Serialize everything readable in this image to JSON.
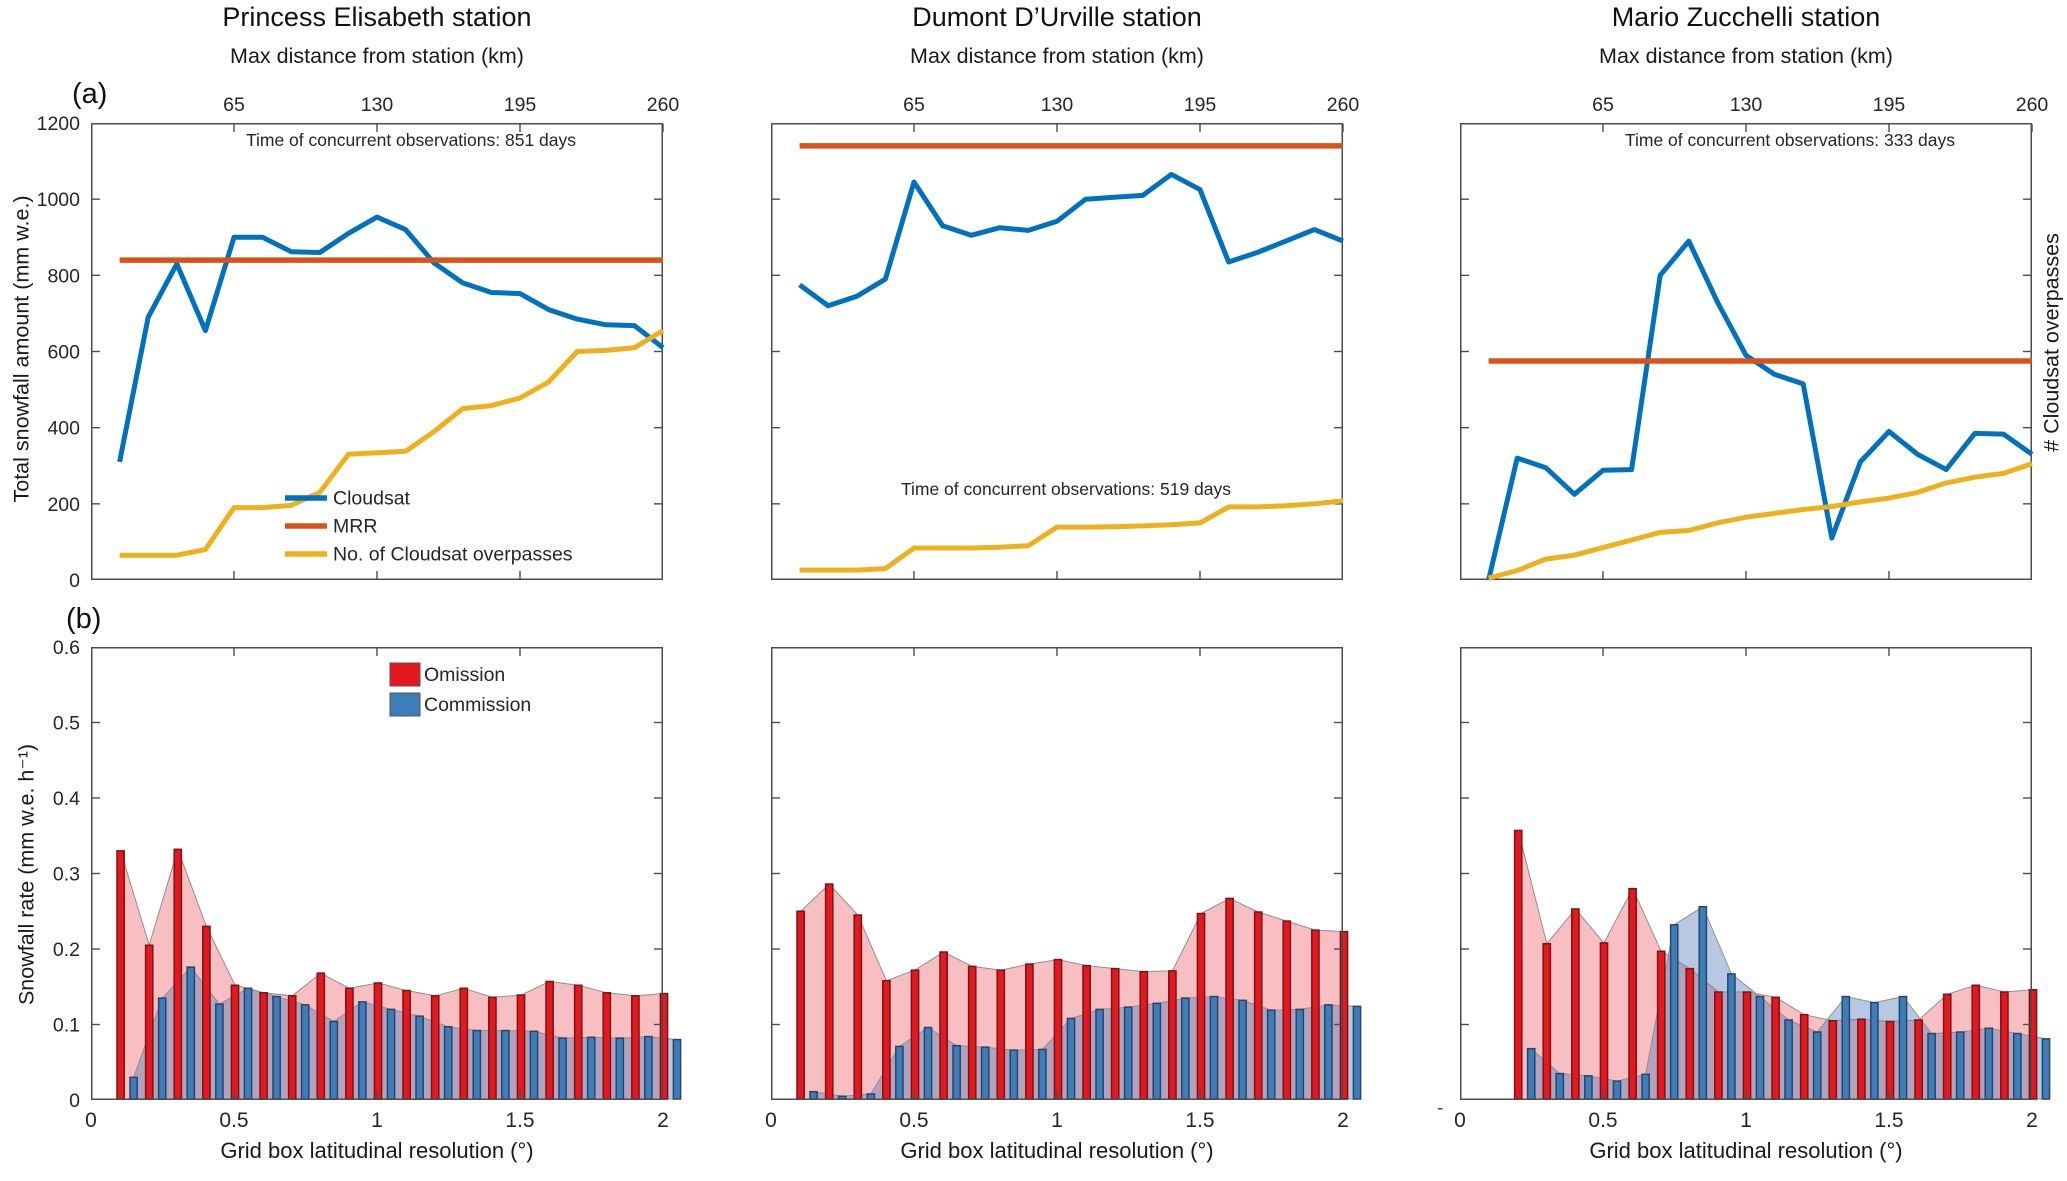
{
  "figure": {
    "panel_label_a": "(a)",
    "panel_label_b": "(b)",
    "top_axis_title": "Max distance from station (km)",
    "bottom_axis_title": "Grid box latitudinal resolution (°)",
    "left_axis_title_top": "Total snowfall amount (mm w.e.)",
    "left_axis_title_bottom": "Snowfall rate (mm w.e. h⁻¹)",
    "right_axis_title": "# Cloudsat overpasses",
    "stray_mark": "-"
  },
  "colors": {
    "axis": "#4d4d4d",
    "text": "#262626",
    "cloudsat": "#0072bd",
    "mrr": "#d95319",
    "overpasses": "#edb120",
    "omission_fill": "#e3191f",
    "omission_edge": "#7c1215",
    "commission_fill": "#3d7eb8",
    "commission_edge": "#27456b",
    "omission_area": "rgba(232,62,68,0.33)",
    "commission_area": "rgba(80,125,185,0.42)",
    "area_edge": "#909090"
  },
  "chart_data": [
    {
      "type": "line",
      "station": "Princess Elisabeth station",
      "annotation": "Time of concurrent observations: 851 days",
      "xlim": [
        0,
        2
      ],
      "ylim": [
        0,
        1200
      ],
      "yticks": [
        0,
        200,
        400,
        600,
        800,
        1000,
        1200
      ],
      "top_axis_ticks_km": [
        65,
        130,
        195,
        260
      ],
      "x": [
        0.1,
        0.2,
        0.3,
        0.4,
        0.5,
        0.6,
        0.7,
        0.8,
        0.9,
        1.0,
        1.1,
        1.2,
        1.3,
        1.4,
        1.5,
        1.6,
        1.7,
        1.8,
        1.9,
        2.0
      ],
      "series": [
        {
          "name": "Cloudsat",
          "values": [
            310,
            690,
            830,
            655,
            900,
            900,
            862,
            860,
            910,
            953,
            920,
            832,
            780,
            755,
            752,
            710,
            685,
            670,
            668,
            610
          ]
        },
        {
          "name": "MRR",
          "value": 840
        },
        {
          "name": "No. of Cloudsat overpasses",
          "values": [
            65,
            65,
            65,
            80,
            190,
            190,
            196,
            230,
            330,
            334,
            338,
            390,
            450,
            458,
            478,
            520,
            600,
            603,
            610,
            655
          ]
        }
      ],
      "legend": [
        "Cloudsat",
        "MRR",
        "No. of Cloudsat overpasses"
      ]
    },
    {
      "type": "line",
      "station": "Dumont D’Urville station",
      "annotation": "Time of concurrent observations: 519 days",
      "xlim": [
        0,
        2
      ],
      "ylim": [
        0,
        1200
      ],
      "yticks": [
        0,
        200,
        400,
        600,
        800,
        1000,
        1200
      ],
      "top_axis_ticks_km": [
        65,
        130,
        195,
        260
      ],
      "x": [
        0.1,
        0.2,
        0.3,
        0.4,
        0.5,
        0.6,
        0.7,
        0.8,
        0.9,
        1.0,
        1.1,
        1.2,
        1.3,
        1.4,
        1.5,
        1.6,
        1.7,
        1.8,
        1.9,
        2.0
      ],
      "series": [
        {
          "name": "Cloudsat",
          "values": [
            775,
            720,
            745,
            790,
            1045,
            930,
            905,
            925,
            918,
            942,
            1000,
            1005,
            1010,
            1065,
            1025,
            835,
            860,
            890,
            920,
            890
          ]
        },
        {
          "name": "MRR",
          "value": 1140
        },
        {
          "name": "No. of Cloudsat overpasses",
          "values": [
            26,
            26,
            26,
            30,
            84,
            84,
            84,
            86,
            90,
            139,
            139,
            140,
            142,
            145,
            150,
            192,
            192,
            195,
            200,
            208
          ]
        }
      ],
      "legend": null
    },
    {
      "type": "line",
      "station": "Mario Zucchelli station",
      "annotation": "Time of concurrent observations: 333 days",
      "xlim": [
        0,
        2
      ],
      "ylim": [
        0,
        1200
      ],
      "yticks": [
        0,
        200,
        400,
        600,
        800,
        1000,
        1200
      ],
      "top_axis_ticks_km": [
        65,
        130,
        195,
        260
      ],
      "x": [
        0.1,
        0.2,
        0.3,
        0.4,
        0.5,
        0.6,
        0.7,
        0.8,
        0.9,
        1.0,
        1.1,
        1.2,
        1.3,
        1.4,
        1.5,
        1.6,
        1.7,
        1.8,
        1.9,
        2.0
      ],
      "series": [
        {
          "name": "Cloudsat",
          "values": [
            0,
            320,
            295,
            225,
            288,
            290,
            800,
            890,
            730,
            590,
            540,
            515,
            110,
            310,
            390,
            330,
            290,
            385,
            383,
            330
          ]
        },
        {
          "name": "MRR",
          "value": 575
        },
        {
          "name": "No. of Cloudsat overpasses",
          "values": [
            5,
            25,
            55,
            65,
            85,
            105,
            125,
            130,
            150,
            165,
            175,
            185,
            193,
            205,
            215,
            230,
            255,
            270,
            280,
            305
          ]
        }
      ],
      "legend": null
    },
    {
      "type": "bar",
      "station": "Princess Elisabeth station",
      "xlim": [
        0,
        2
      ],
      "ylim": [
        0,
        0.6
      ],
      "yticks": [
        0,
        0.1,
        0.2,
        0.3,
        0.4,
        0.5,
        0.6
      ],
      "xticks": [
        0,
        0.5,
        1,
        1.5,
        2
      ],
      "x": [
        0.1,
        0.2,
        0.3,
        0.4,
        0.5,
        0.6,
        0.7,
        0.8,
        0.9,
        1.0,
        1.1,
        1.2,
        1.3,
        1.4,
        1.5,
        1.6,
        1.7,
        1.8,
        1.9,
        2.0
      ],
      "series": [
        {
          "name": "Omission",
          "values": [
            0.33,
            0.205,
            0.332,
            0.23,
            0.152,
            0.142,
            0.138,
            0.168,
            0.148,
            0.155,
            0.145,
            0.138,
            0.148,
            0.136,
            0.139,
            0.157,
            0.152,
            0.142,
            0.138,
            0.141
          ]
        },
        {
          "name": "Commission",
          "values": [
            0.03,
            0.135,
            0.176,
            0.127,
            0.148,
            0.137,
            0.126,
            0.104,
            0.13,
            0.12,
            0.111,
            0.097,
            0.092,
            0.092,
            0.091,
            0.082,
            0.083,
            0.082,
            0.084,
            0.08
          ]
        }
      ],
      "legend": [
        "Omission",
        "Commission"
      ]
    },
    {
      "type": "bar",
      "station": "Dumont D’Urville station",
      "xlim": [
        0,
        2
      ],
      "ylim": [
        0,
        0.6
      ],
      "yticks": [
        0,
        0.1,
        0.2,
        0.3,
        0.4,
        0.5,
        0.6
      ],
      "xticks": [
        0,
        0.5,
        1,
        1.5,
        2
      ],
      "x": [
        0.1,
        0.2,
        0.3,
        0.4,
        0.5,
        0.6,
        0.7,
        0.8,
        0.9,
        1.0,
        1.1,
        1.2,
        1.3,
        1.4,
        1.5,
        1.6,
        1.7,
        1.8,
        1.9,
        2.0
      ],
      "series": [
        {
          "name": "Omission",
          "values": [
            0.25,
            0.286,
            0.245,
            0.158,
            0.172,
            0.196,
            0.177,
            0.172,
            0.18,
            0.186,
            0.178,
            0.174,
            0.17,
            0.171,
            0.247,
            0.267,
            0.249,
            0.237,
            0.225,
            0.223
          ]
        },
        {
          "name": "Commission",
          "values": [
            0.011,
            0.005,
            0.008,
            0.071,
            0.096,
            0.072,
            0.07,
            0.066,
            0.067,
            0.108,
            0.12,
            0.123,
            0.128,
            0.135,
            0.137,
            0.132,
            0.119,
            0.12,
            0.126,
            0.124
          ]
        }
      ],
      "legend": null
    },
    {
      "type": "bar",
      "station": "Mario Zucchelli station",
      "xlim": [
        0,
        2
      ],
      "ylim": [
        0,
        0.6
      ],
      "yticks": [
        0,
        0.1,
        0.2,
        0.3,
        0.4,
        0.5,
        0.6
      ],
      "xticks": [
        0,
        0.5,
        1,
        1.5,
        2
      ],
      "x": [
        0.2,
        0.3,
        0.4,
        0.5,
        0.6,
        0.7,
        0.8,
        0.9,
        1.0,
        1.1,
        1.2,
        1.3,
        1.4,
        1.5,
        1.6,
        1.7,
        1.8,
        1.9,
        2.0
      ],
      "series": [
        {
          "name": "Omission",
          "values": [
            0.357,
            0.207,
            0.253,
            0.208,
            0.28,
            0.197,
            0.174,
            0.143,
            0.143,
            0.136,
            0.113,
            0.105,
            0.107,
            0.104,
            0.106,
            0.14,
            0.152,
            0.143,
            0.146
          ]
        },
        {
          "name": "Commission",
          "values": [
            0.068,
            0.035,
            0.032,
            0.025,
            0.034,
            0.232,
            0.256,
            0.167,
            0.137,
            0.106,
            0.09,
            0.137,
            0.129,
            0.137,
            0.088,
            0.09,
            0.095,
            0.088,
            0.081
          ]
        }
      ],
      "legend": null
    }
  ]
}
